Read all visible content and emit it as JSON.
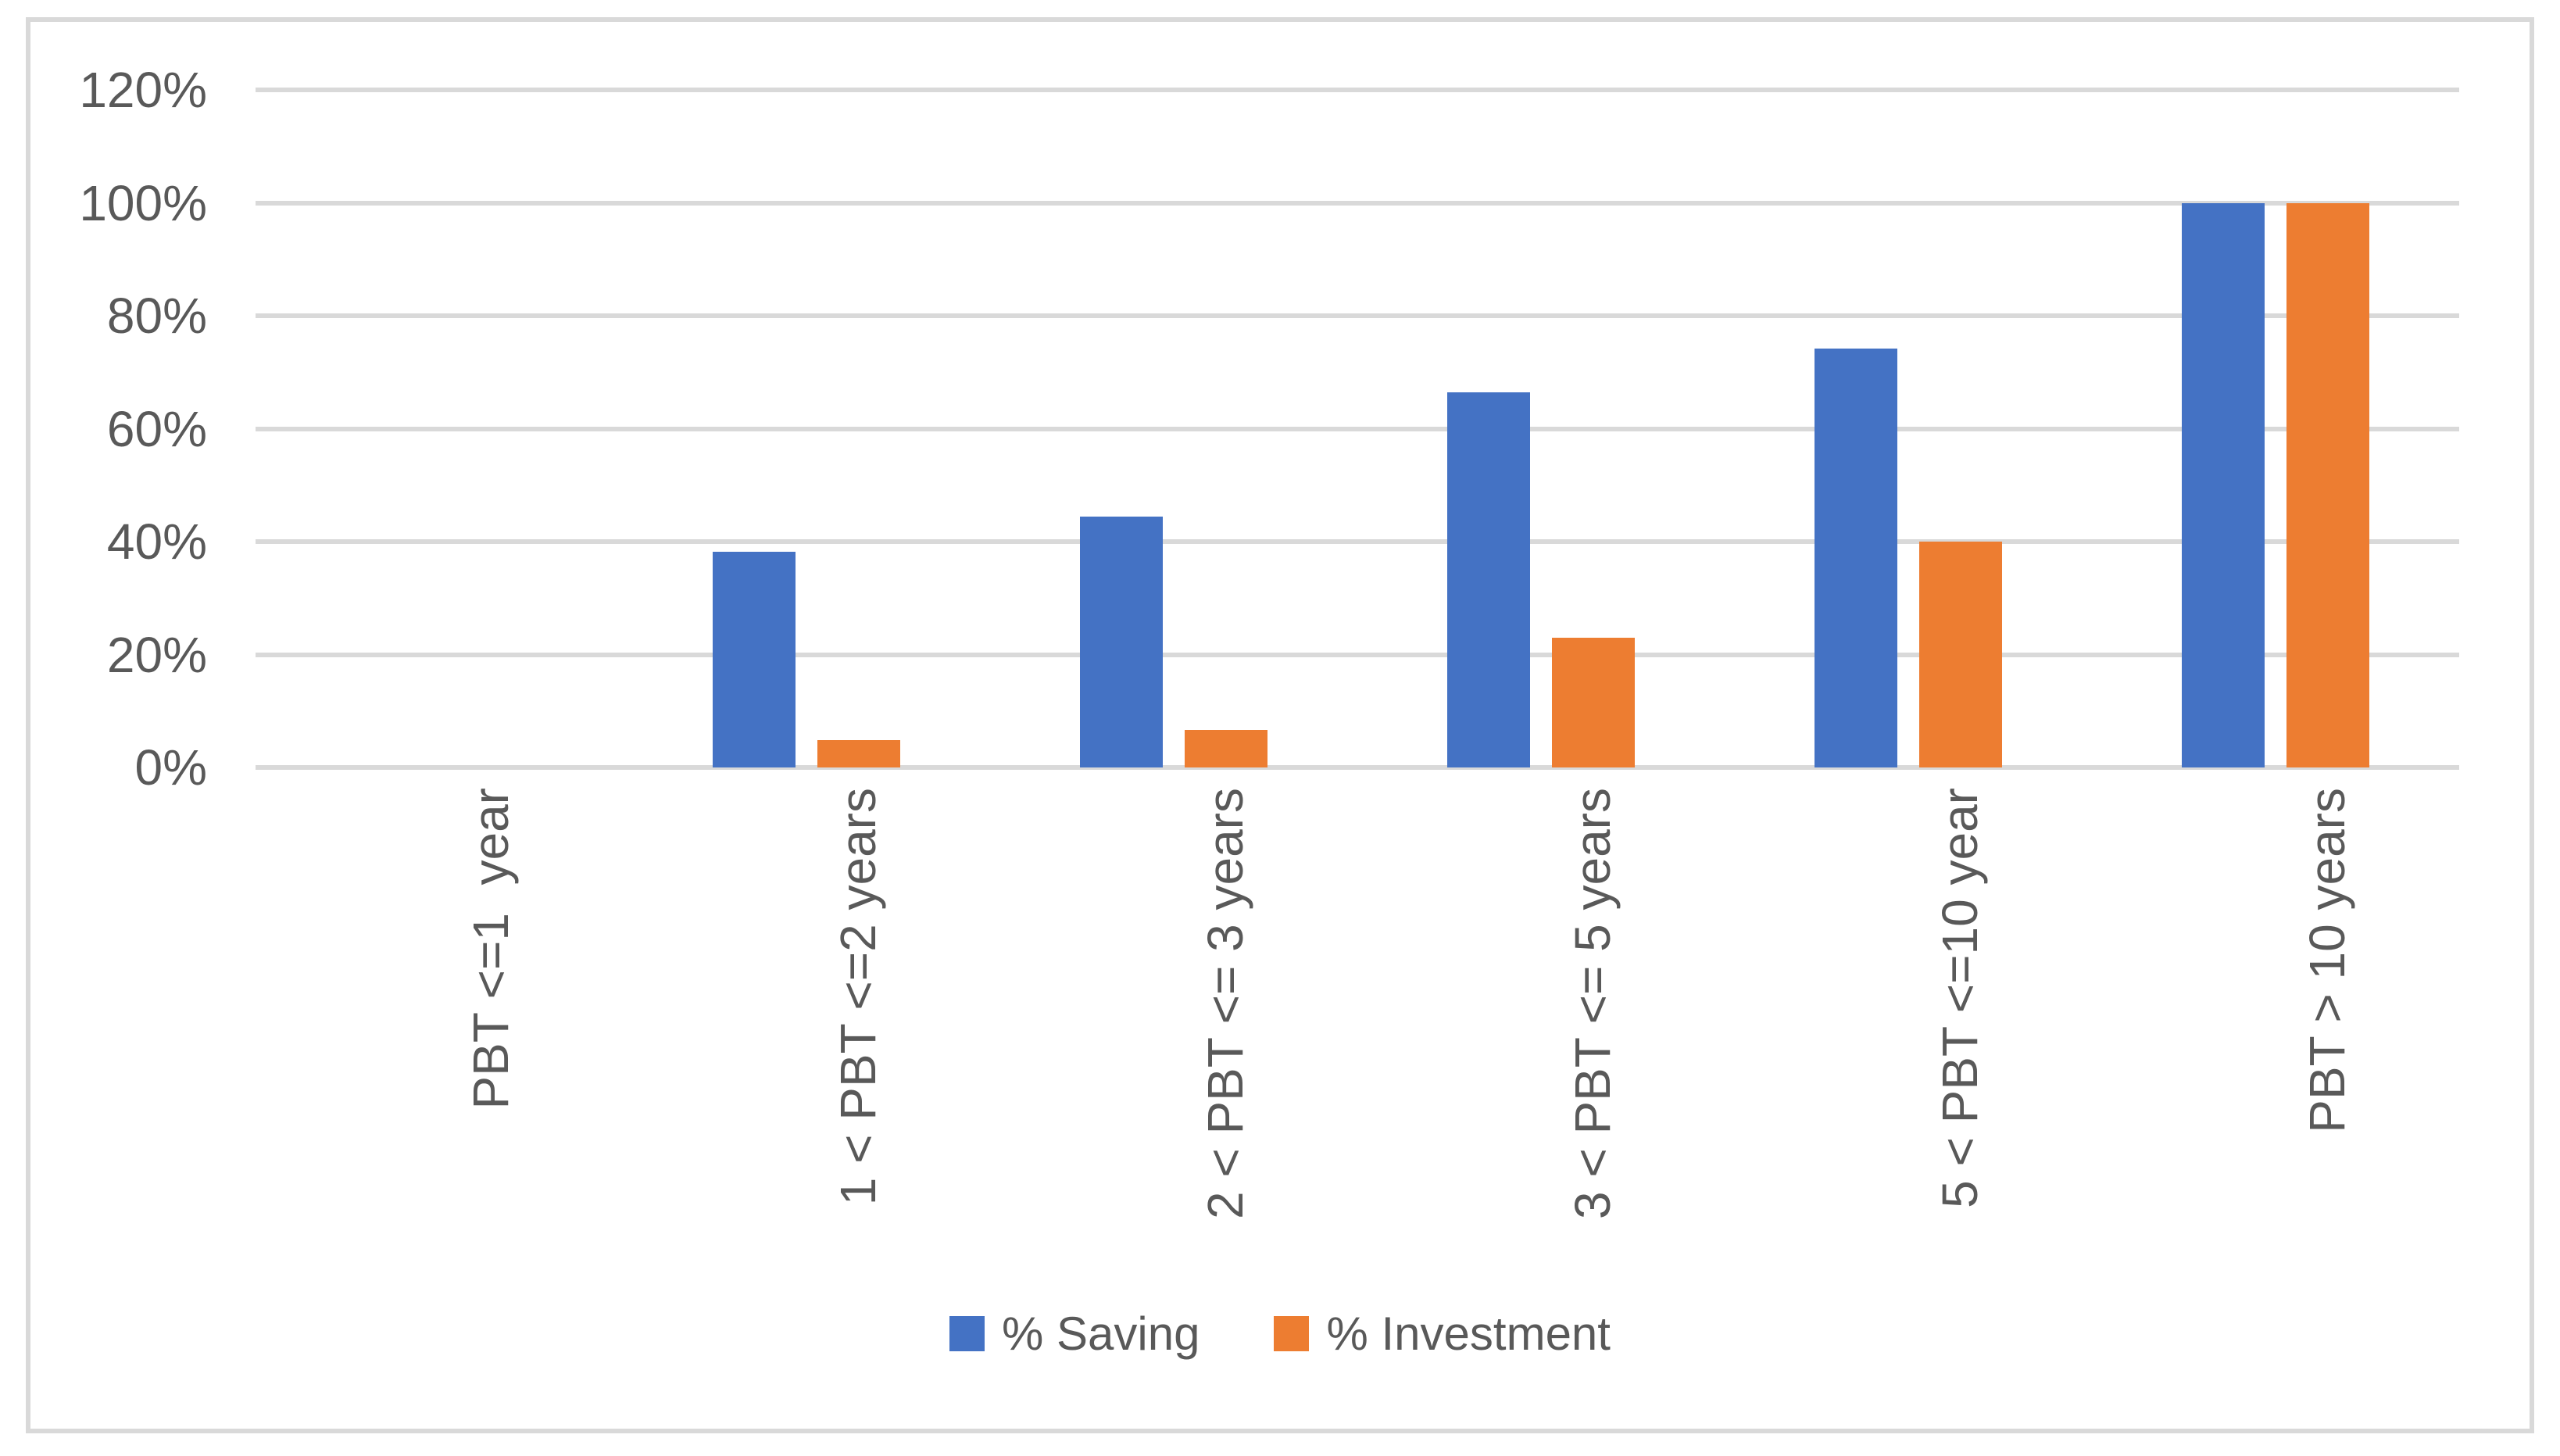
{
  "chart_data": {
    "type": "bar",
    "title": "",
    "categories": [
      "PBT <=1  year",
      "1 < PBT <=2 years",
      "2 < PBT <= 3 years",
      "3 < PBT <= 5 years",
      "5 < PBT <=10 year",
      "PBT > 10 years"
    ],
    "series": [
      {
        "name": "% Saving",
        "color": "#4472C4",
        "values": [
          0,
          38.2,
          44.4,
          66.5,
          74.2,
          100
        ]
      },
      {
        "name": "% Investment",
        "color": "#ED7D31",
        "values": [
          0,
          4.9,
          6.7,
          23,
          40,
          100
        ]
      }
    ],
    "y_axis": {
      "ticks": [
        "0%",
        "20%",
        "40%",
        "60%",
        "80%",
        "100%",
        "120%"
      ],
      "tick_values": [
        0,
        20,
        40,
        60,
        80,
        100,
        120
      ],
      "ylim": [
        0,
        120
      ],
      "unit": "percent"
    },
    "xlabel": "",
    "ylabel": "",
    "grid": true,
    "legend_position": "bottom"
  },
  "colors": {
    "grid": "#D9D9D9",
    "frame": "#D9D9D9",
    "text": "#595959",
    "background": "#FFFFFF"
  }
}
